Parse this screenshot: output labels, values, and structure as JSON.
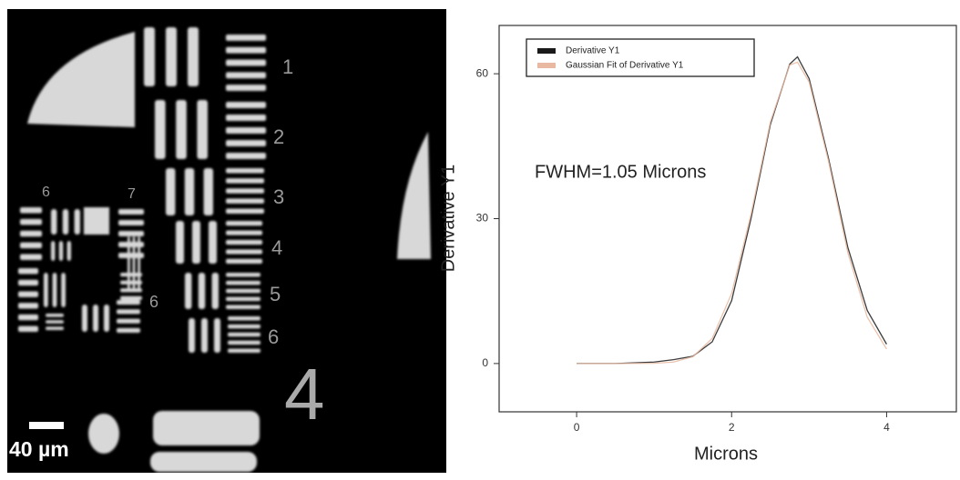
{
  "image": {
    "scale_label": "40 µm",
    "element_labels": [
      "1",
      "2",
      "3",
      "4",
      "5",
      "6",
      "6",
      "7",
      "6",
      "4"
    ]
  },
  "chart_data": {
    "type": "line",
    "x_label": "Microns",
    "y_label": "Derivative Y1",
    "annotation": "FWHM=1.05 Microns",
    "x": [
      0,
      0.5,
      1,
      1.25,
      1.5,
      1.75,
      2,
      2.25,
      2.5,
      2.75,
      2.85,
      3,
      3.25,
      3.5,
      3.75,
      4
    ],
    "series": [
      {
        "name": "Derivative Y1",
        "color": "#1a1a1a",
        "values": [
          0,
          0,
          0.3,
          0.8,
          1.5,
          4.5,
          13,
          30,
          49.5,
          62,
          63.5,
          59,
          42.5,
          24,
          11,
          4
        ]
      },
      {
        "name": "Gaussian Fit of Derivative Y1",
        "color": "#e8b8a0",
        "values": [
          0,
          0,
          0.05,
          0.3,
          1.4,
          5.2,
          14.5,
          30.9,
          50,
          61.8,
          62.4,
          58.3,
          41.9,
          22.9,
          9.6,
          3
        ]
      }
    ],
    "xlim": [
      -1,
      4.9
    ],
    "ylim": [
      -10,
      70
    ],
    "xticks": [
      0,
      2,
      4
    ],
    "yticks": [
      0,
      30,
      60
    ],
    "legend": "upper left",
    "grid": false
  }
}
